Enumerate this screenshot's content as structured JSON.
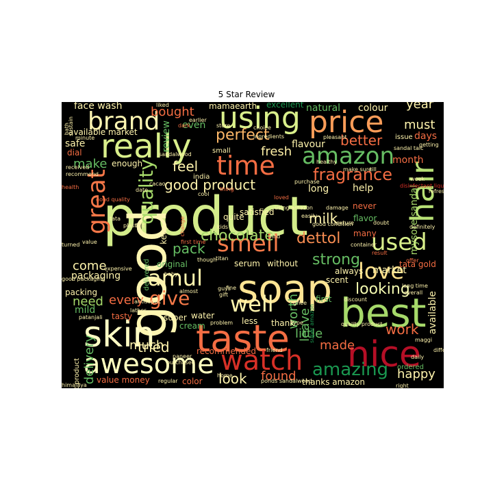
{
  "figure": {
    "title": "5 Star Review"
  },
  "colors": {
    "background": "#000000",
    "palette": "RdYlGn"
  },
  "words": [
    {
      "text": "product",
      "color": "#d3ec8a"
    },
    {
      "text": "good",
      "color": "#fdf5b1"
    },
    {
      "text": "soap",
      "color": "#fee493"
    },
    {
      "text": "best",
      "color": "#a6d96a"
    },
    {
      "text": "taste",
      "color": "#f46d43"
    },
    {
      "text": "nice",
      "color": "#b50f26"
    },
    {
      "text": "skin",
      "color": "#fffcc4"
    },
    {
      "text": "hair",
      "color": "#b7e075"
    },
    {
      "text": "really",
      "color": "#d9ef8b"
    },
    {
      "text": "price",
      "color": "#fa9c58"
    },
    {
      "text": "using",
      "color": "#d9ef8b"
    },
    {
      "text": "time",
      "color": "#f46d43"
    },
    {
      "text": "watch",
      "color": "#d73027"
    },
    {
      "text": "awesome",
      "color": "#ffffbf"
    },
    {
      "text": "brand",
      "color": "#fff7b3"
    },
    {
      "text": "great",
      "color": "#f57748"
    },
    {
      "text": "quality",
      "color": "#a6d96a"
    },
    {
      "text": "amazon",
      "color": "#66bd63"
    },
    {
      "text": "smell",
      "color": "#f67a49"
    },
    {
      "text": "used",
      "color": "#d9ef8b"
    },
    {
      "text": "amul",
      "color": "#fff4ad"
    },
    {
      "text": "love",
      "color": "#fee08b"
    },
    {
      "text": "well",
      "color": "#fff4ad"
    },
    {
      "text": "give",
      "color": "#f67a49"
    },
    {
      "text": "amazing",
      "color": "#1a9850"
    },
    {
      "text": "fragrance",
      "color": "#f46d43"
    },
    {
      "text": "good product",
      "color": "#fff4ad"
    },
    {
      "text": "chocolate",
      "color": "#a6d96a"
    },
    {
      "text": "dettol",
      "color": "#f88d52"
    },
    {
      "text": "strong",
      "color": "#66bd63"
    },
    {
      "text": "looking",
      "color": "#f4fab0"
    },
    {
      "text": "work",
      "color": "#f46d43"
    },
    {
      "text": "little",
      "color": "#66bd63"
    },
    {
      "text": "tried",
      "color": "#fff4ad"
    },
    {
      "text": "delivery",
      "color": "#66bd63"
    },
    {
      "text": "perfect",
      "color": "#fdb768"
    },
    {
      "text": "bought",
      "color": "#f46d43"
    },
    {
      "text": "fresh",
      "color": "#fff0a6"
    },
    {
      "text": "feel",
      "color": "#fff4ad"
    },
    {
      "text": "pack",
      "color": "#66bd63"
    },
    {
      "text": "milk",
      "color": "#fff4ad"
    },
    {
      "text": "better",
      "color": "#f46d43"
    },
    {
      "text": "must",
      "color": "#fff4ad"
    },
    {
      "text": "year",
      "color": "#fff4ad"
    },
    {
      "text": "come",
      "color": "#fff4ad"
    },
    {
      "text": "need",
      "color": "#a6d96a"
    },
    {
      "text": "every",
      "color": "#f46d43"
    },
    {
      "text": "much",
      "color": "#fff4ad"
    },
    {
      "text": "found",
      "color": "#f46d43"
    },
    {
      "text": "look",
      "color": "#fff4ad"
    },
    {
      "text": "made",
      "color": "#f46d43"
    },
    {
      "text": "happy",
      "color": "#fff4ad"
    },
    {
      "text": "worth",
      "color": "#66bd63"
    },
    {
      "text": "leave",
      "color": "#66bd63"
    },
    {
      "text": "mysore sandal",
      "color": "#a6d96a"
    },
    {
      "text": "available",
      "color": "#fff4ad"
    },
    {
      "text": "make",
      "color": "#66bd63"
    },
    {
      "text": "packaging",
      "color": "#fff4ad"
    },
    {
      "text": "flavour",
      "color": "#fff4ad"
    },
    {
      "text": "help",
      "color": "#fff4ad"
    },
    {
      "text": "long",
      "color": "#fff4ad"
    },
    {
      "text": "face wash",
      "color": "#fff4ad"
    },
    {
      "text": "natural",
      "color": "#66bd63"
    },
    {
      "text": "colour",
      "color": "#fff4ad"
    },
    {
      "text": "excellent",
      "color": "#1a9850"
    },
    {
      "text": "mamaearth",
      "color": "#fff4ad"
    },
    {
      "text": "available market",
      "color": "#fff4ad"
    },
    {
      "text": "safe",
      "color": "#fff4ad"
    },
    {
      "text": "dial",
      "color": "#f46d43"
    },
    {
      "text": "enough",
      "color": "#fff4ad"
    },
    {
      "text": "even",
      "color": "#66bd63"
    },
    {
      "text": "review",
      "color": "#66bd63"
    },
    {
      "text": "days",
      "color": "#f46d43"
    },
    {
      "text": "month",
      "color": "#f46d43"
    },
    {
      "text": "market",
      "color": "#fff4ad"
    },
    {
      "text": "never",
      "color": "#f46d43"
    },
    {
      "text": "flavor",
      "color": "#66bd63"
    },
    {
      "text": "many",
      "color": "#f46d43"
    },
    {
      "text": "satisfied",
      "color": "#fff4ad"
    },
    {
      "text": "quite",
      "color": "#fff4ad"
    },
    {
      "text": "keep",
      "color": "#fff4ad"
    },
    {
      "text": "original",
      "color": "#66bd63"
    },
    {
      "text": "serum",
      "color": "#fff4ad"
    },
    {
      "text": "without",
      "color": "#fff4ad"
    },
    {
      "text": "always",
      "color": "#fff4ad"
    },
    {
      "text": "scent",
      "color": "#fff4ad"
    },
    {
      "text": "first",
      "color": "#66bd63"
    },
    {
      "text": "tata gold",
      "color": "#f46d43"
    },
    {
      "text": "packing",
      "color": "#fff4ad"
    },
    {
      "text": "mild",
      "color": "#66bd63"
    },
    {
      "text": "tasty",
      "color": "#f46d43"
    },
    {
      "text": "super",
      "color": "#fff4ad"
    },
    {
      "text": "water",
      "color": "#fff4ad"
    },
    {
      "text": "cream",
      "color": "#66bd63"
    },
    {
      "text": "less",
      "color": "#fff4ad"
    },
    {
      "text": "thank",
      "color": "#fff4ad"
    },
    {
      "text": "recommended",
      "color": "#f46d43"
    },
    {
      "text": "value money",
      "color": "#f46d43"
    },
    {
      "text": "color",
      "color": "#f46d43"
    },
    {
      "text": "thanks amazon",
      "color": "#fff4ad"
    },
    {
      "text": "ordered",
      "color": "#66bd63"
    },
    {
      "text": "best product",
      "color": "#fff4ad"
    },
    {
      "text": "delivered",
      "color": "#66bd63"
    },
    {
      "text": "small",
      "color": "#fff4ad"
    },
    {
      "text": "india",
      "color": "#fff4ad"
    },
    {
      "text": "issue",
      "color": "#fff4ad"
    },
    {
      "text": "liked",
      "color": "#fff4ad"
    },
    {
      "text": "earlier",
      "color": "#fff4ad"
    },
    {
      "text": "choice",
      "color": "#fff4ad"
    },
    {
      "text": "ingredients",
      "color": "#fff4ad"
    },
    {
      "text": "sandalwood",
      "color": "#fff4ad"
    },
    {
      "text": "received",
      "color": "#fff4ad"
    },
    {
      "text": "recommend",
      "color": "#fff4ad"
    },
    {
      "text": "pleasant",
      "color": "#fff4ad"
    },
    {
      "text": "sandal talc",
      "color": "#fff4ad"
    },
    {
      "text": "getting",
      "color": "#fff4ad"
    },
    {
      "text": "gift",
      "color": "#fff4ad"
    },
    {
      "text": "ghee",
      "color": "#fff4ad"
    },
    {
      "text": "type",
      "color": "#fff4ad"
    },
    {
      "text": "friend",
      "color": "#fff4ad"
    },
    {
      "text": "regular",
      "color": "#fff4ad"
    },
    {
      "text": "ponds sandalwood",
      "color": "#fff4ad"
    },
    {
      "text": "paneer",
      "color": "#fff4ad"
    },
    {
      "text": "purchased",
      "color": "#fff4ad"
    },
    {
      "text": "antiseptic",
      "color": "#fff4ad"
    },
    {
      "text": "lather",
      "color": "#fff4ad"
    },
    {
      "text": "patanjali",
      "color": "#fff4ad"
    },
    {
      "text": "himalaya",
      "color": "#fff4ad"
    },
    {
      "text": "good packaging",
      "color": "#fff4ad"
    },
    {
      "text": "good quality",
      "color": "#f46d43"
    },
    {
      "text": "expensive",
      "color": "#fff4ad"
    },
    {
      "text": "plastic",
      "color": "#fff4ad"
    },
    {
      "text": "felt",
      "color": "#fff4ad"
    },
    {
      "text": "tata",
      "color": "#fff4ad"
    },
    {
      "text": "cool",
      "color": "#fff4ad"
    },
    {
      "text": "healthy",
      "color": "#fff4ad"
    },
    {
      "text": "date",
      "color": "#fff4ad"
    },
    {
      "text": "cacao",
      "color": "#fff4ad"
    },
    {
      "text": "health",
      "color": "#f46d43"
    },
    {
      "text": "first time",
      "color": "#f46d43"
    },
    {
      "text": "though",
      "color": "#fff4ad"
    },
    {
      "text": "titan",
      "color": "#fff4ad"
    },
    {
      "text": "guys",
      "color": "#fff4ad"
    },
    {
      "text": "fine",
      "color": "#fff4ad"
    },
    {
      "text": "almost",
      "color": "#fff4ad"
    },
    {
      "text": "problem",
      "color": "#fff4ad"
    },
    {
      "text": "home",
      "color": "#fff4ad"
    },
    {
      "text": "find",
      "color": "#fff4ad"
    },
    {
      "text": "easily",
      "color": "#fff4ad"
    },
    {
      "text": "container",
      "color": "#fff4ad"
    },
    {
      "text": "result",
      "color": "#f46d43"
    },
    {
      "text": "offer",
      "color": "#f46d43"
    },
    {
      "text": "long time",
      "color": "#fff4ad"
    },
    {
      "text": "overall",
      "color": "#fff4ad"
    },
    {
      "text": "discount",
      "color": "#fff4ad"
    },
    {
      "text": "quality product",
      "color": "#fff4ad"
    },
    {
      "text": "maggi",
      "color": "#fff4ad"
    },
    {
      "text": "difference",
      "color": "#fff4ad"
    },
    {
      "text": "daily",
      "color": "#fff4ad"
    },
    {
      "text": "right",
      "color": "#fff4ad"
    },
    {
      "text": "disinfectant liquid",
      "color": "#d73027"
    },
    {
      "text": "definitely",
      "color": "#fff4ad"
    },
    {
      "text": "doubt",
      "color": "#fff4ad"
    },
    {
      "text": "refreshing",
      "color": "#fff4ad"
    },
    {
      "text": "week",
      "color": "#fff4ad"
    },
    {
      "text": "till",
      "color": "#fff4ad"
    },
    {
      "text": "make sure",
      "color": "#fff4ad"
    },
    {
      "text": "damage",
      "color": "#fff4ad"
    },
    {
      "text": "texture",
      "color": "#fff4ad"
    },
    {
      "text": "good condition",
      "color": "#fff4ad"
    },
    {
      "text": "purchase",
      "color": "#fff4ad"
    },
    {
      "text": "kids",
      "color": "#fff4ad"
    },
    {
      "text": "change",
      "color": "#f46d43"
    },
    {
      "text": "value",
      "color": "#fff4ad"
    },
    {
      "text": "turned",
      "color": "#fff4ad"
    },
    {
      "text": "sustain",
      "color": "#fff4ad"
    },
    {
      "text": "bath",
      "color": "#fff4ad"
    },
    {
      "text": "minute",
      "color": "#fff4ad"
    },
    {
      "text": "baby",
      "color": "#fff4ad"
    },
    {
      "text": "dark",
      "color": "#f46d43"
    },
    {
      "text": "store",
      "color": "#fff4ad"
    },
    {
      "text": "thing",
      "color": "#f46d43"
    },
    {
      "text": "loved",
      "color": "#f46d43"
    },
    {
      "text": "using amazon",
      "color": "#fff4ad"
    },
    {
      "text": "super amazon",
      "color": "#1a9850"
    },
    {
      "text": "started using",
      "color": "#fff4ad"
    }
  ]
}
